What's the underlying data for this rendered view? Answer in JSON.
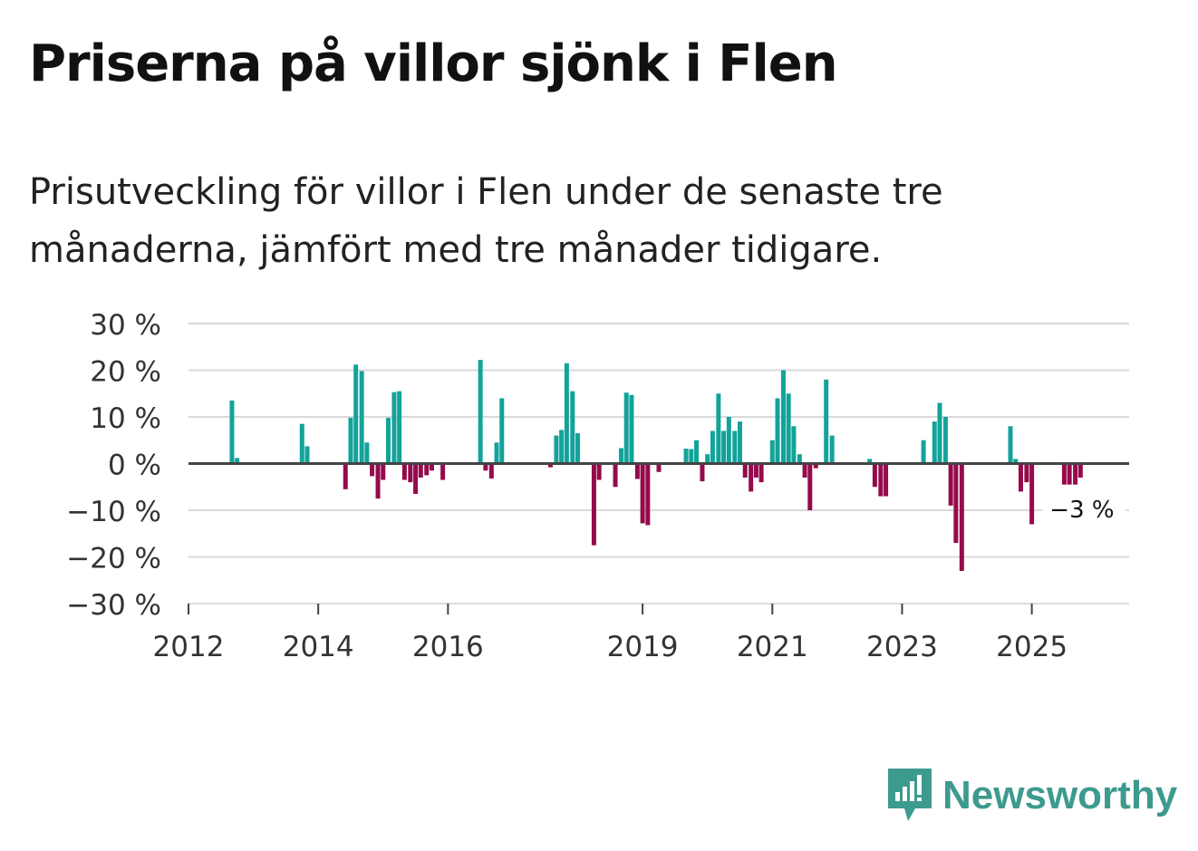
{
  "header": {
    "title": "Priserna på villor sjönk i Flen",
    "subtitle": "Prisutveckling för villor i Flen under de senaste tre månaderna, jämfört med tre månader tidigare."
  },
  "brand": {
    "name": "Newsworthy",
    "color": "#3d9a8e",
    "icon": "newsworthy-logo-icon"
  },
  "colors": {
    "positive": "#12a39a",
    "negative": "#950a4c",
    "grid": "#d9d9d9",
    "zero_line": "#444444"
  },
  "chart_data": {
    "type": "bar",
    "title": "Priserna på villor sjönk i Flen",
    "xlabel": "",
    "ylabel": "",
    "ylim": [
      -30,
      30
    ],
    "y_ticks": [
      30,
      20,
      10,
      0,
      -10,
      -20,
      -30
    ],
    "y_tick_labels": [
      "30 %",
      "20 %",
      "10 %",
      "0 %",
      "−10 %",
      "−20 %",
      "−30 %"
    ],
    "x_tick_labels": [
      "2012",
      "2014",
      "2016",
      "2019",
      "2021",
      "2023",
      "2025"
    ],
    "x_tick_years": [
      2012,
      2014,
      2016,
      2019,
      2021,
      2023,
      2025
    ],
    "x_range": [
      2012.0,
      2026.5
    ],
    "grid": true,
    "last_value_label": "−3 %",
    "series": [
      {
        "name": "Prisutveckling",
        "points": [
          {
            "x": 2012.67,
            "y": 13.5
          },
          {
            "x": 2012.75,
            "y": 1.2
          },
          {
            "x": 2013.75,
            "y": 8.5
          },
          {
            "x": 2013.83,
            "y": 3.7
          },
          {
            "x": 2014.42,
            "y": -5.5
          },
          {
            "x": 2014.5,
            "y": 9.8
          },
          {
            "x": 2014.58,
            "y": 21.2
          },
          {
            "x": 2014.67,
            "y": 19.8
          },
          {
            "x": 2014.75,
            "y": 4.5
          },
          {
            "x": 2014.83,
            "y": -2.7
          },
          {
            "x": 2014.92,
            "y": -7.5
          },
          {
            "x": 2015.0,
            "y": -3.5
          },
          {
            "x": 2015.08,
            "y": 9.8
          },
          {
            "x": 2015.17,
            "y": 15.3
          },
          {
            "x": 2015.25,
            "y": 15.5
          },
          {
            "x": 2015.33,
            "y": -3.5
          },
          {
            "x": 2015.42,
            "y": -4.0
          },
          {
            "x": 2015.5,
            "y": -6.5
          },
          {
            "x": 2015.58,
            "y": -3.0
          },
          {
            "x": 2015.67,
            "y": -2.5
          },
          {
            "x": 2015.75,
            "y": -1.5
          },
          {
            "x": 2015.92,
            "y": -3.5
          },
          {
            "x": 2016.5,
            "y": 22.2
          },
          {
            "x": 2016.58,
            "y": -1.5
          },
          {
            "x": 2016.67,
            "y": -3.2
          },
          {
            "x": 2016.75,
            "y": 4.5
          },
          {
            "x": 2016.83,
            "y": 14.0
          },
          {
            "x": 2017.58,
            "y": -0.8
          },
          {
            "x": 2017.67,
            "y": 6.0
          },
          {
            "x": 2017.75,
            "y": 7.2
          },
          {
            "x": 2017.83,
            "y": 21.5
          },
          {
            "x": 2017.92,
            "y": 15.5
          },
          {
            "x": 2018.0,
            "y": 6.5
          },
          {
            "x": 2018.25,
            "y": -17.5
          },
          {
            "x": 2018.33,
            "y": -3.5
          },
          {
            "x": 2018.58,
            "y": -5.0
          },
          {
            "x": 2018.67,
            "y": 3.3
          },
          {
            "x": 2018.75,
            "y": 15.2
          },
          {
            "x": 2018.83,
            "y": 14.7
          },
          {
            "x": 2018.92,
            "y": -3.3
          },
          {
            "x": 2019.0,
            "y": -12.8
          },
          {
            "x": 2019.08,
            "y": -13.2
          },
          {
            "x": 2019.25,
            "y": -1.8
          },
          {
            "x": 2019.67,
            "y": 3.2
          },
          {
            "x": 2019.75,
            "y": 3.1
          },
          {
            "x": 2019.83,
            "y": 5.0
          },
          {
            "x": 2019.92,
            "y": -3.8
          },
          {
            "x": 2020.0,
            "y": 2.0
          },
          {
            "x": 2020.08,
            "y": 7.0
          },
          {
            "x": 2020.17,
            "y": 15.0
          },
          {
            "x": 2020.25,
            "y": 7.0
          },
          {
            "x": 2020.33,
            "y": 10.0
          },
          {
            "x": 2020.42,
            "y": 7.0
          },
          {
            "x": 2020.5,
            "y": 9.0
          },
          {
            "x": 2020.58,
            "y": -3.0
          },
          {
            "x": 2020.67,
            "y": -6.0
          },
          {
            "x": 2020.75,
            "y": -3.0
          },
          {
            "x": 2020.83,
            "y": -4.0
          },
          {
            "x": 2021.0,
            "y": 5.0
          },
          {
            "x": 2021.08,
            "y": 14.0
          },
          {
            "x": 2021.17,
            "y": 20.0
          },
          {
            "x": 2021.25,
            "y": 15.0
          },
          {
            "x": 2021.33,
            "y": 8.0
          },
          {
            "x": 2021.42,
            "y": 2.0
          },
          {
            "x": 2021.5,
            "y": -3.0
          },
          {
            "x": 2021.58,
            "y": -10.0
          },
          {
            "x": 2021.67,
            "y": -1.0
          },
          {
            "x": 2021.83,
            "y": 18.0
          },
          {
            "x": 2021.92,
            "y": 6.0
          },
          {
            "x": 2022.5,
            "y": 1.0
          },
          {
            "x": 2022.58,
            "y": -5.0
          },
          {
            "x": 2022.67,
            "y": -7.0
          },
          {
            "x": 2022.75,
            "y": -7.0
          },
          {
            "x": 2023.33,
            "y": 5.0
          },
          {
            "x": 2023.5,
            "y": 9.0
          },
          {
            "x": 2023.58,
            "y": 13.0
          },
          {
            "x": 2023.67,
            "y": 10.0
          },
          {
            "x": 2023.75,
            "y": -9.0
          },
          {
            "x": 2023.83,
            "y": -17.0
          },
          {
            "x": 2023.92,
            "y": -23.0
          },
          {
            "x": 2024.67,
            "y": 8.0
          },
          {
            "x": 2024.75,
            "y": 1.0
          },
          {
            "x": 2024.83,
            "y": -6.0
          },
          {
            "x": 2024.92,
            "y": -4.0
          },
          {
            "x": 2025.0,
            "y": -13.0
          },
          {
            "x": 2025.5,
            "y": -4.5
          },
          {
            "x": 2025.58,
            "y": -4.5
          },
          {
            "x": 2025.67,
            "y": -4.5
          },
          {
            "x": 2025.75,
            "y": -3.0
          }
        ]
      }
    ]
  }
}
